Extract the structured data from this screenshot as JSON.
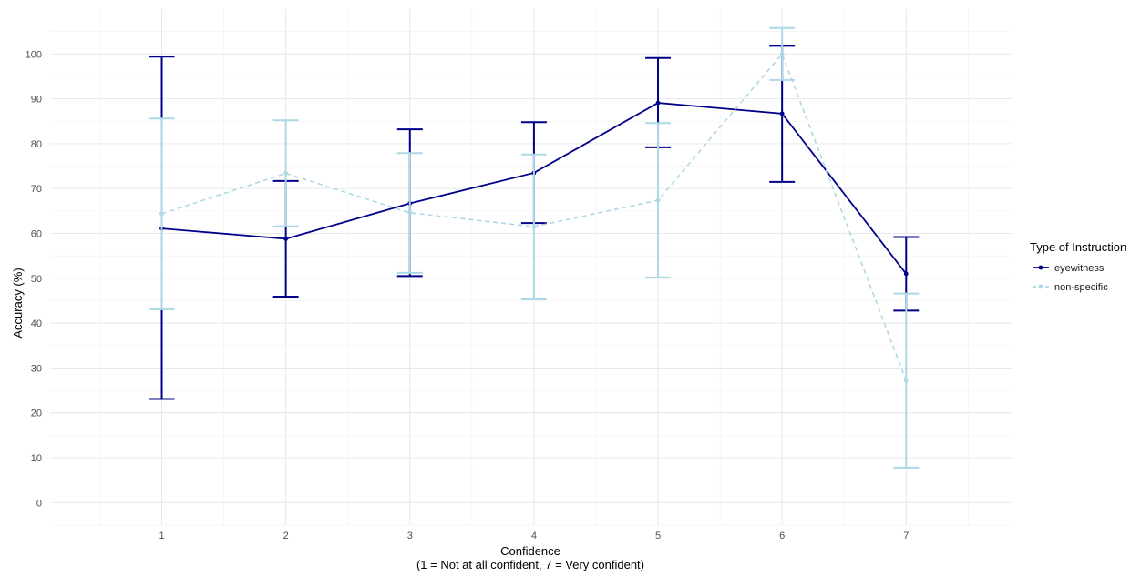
{
  "chart_data": {
    "type": "line",
    "title": "",
    "xlabel_line1": "Confidence",
    "xlabel_line2": "(1 = Not at all confident, 7 = Very confident)",
    "ylabel": "Accuracy (%)",
    "x": [
      1,
      2,
      3,
      4,
      5,
      6,
      7
    ],
    "xlim": [
      0.1,
      7.85
    ],
    "ylim": [
      -5,
      110
    ],
    "yticks": [
      0,
      10,
      20,
      30,
      40,
      50,
      60,
      70,
      80,
      90,
      100
    ],
    "grid": true,
    "legend": {
      "title": "Type of Instruction",
      "position": "right"
    },
    "series": [
      {
        "name": "eyewitness",
        "color": "#00008B",
        "dashed": false,
        "values": [
          61.1,
          58.8,
          66.7,
          73.5,
          89.1,
          86.7,
          51.0
        ],
        "error_low": [
          23.1,
          45.9,
          50.5,
          62.3,
          79.2,
          71.5,
          42.8
        ],
        "error_high": [
          99.4,
          71.7,
          83.2,
          84.8,
          99.1,
          101.8,
          59.2
        ]
      },
      {
        "name": "non-specific",
        "color": "#ADD8E6",
        "dashed": true,
        "values": [
          64.4,
          73.4,
          64.6,
          61.5,
          67.4,
          100.0,
          27.2
        ],
        "error_low": [
          43.1,
          61.6,
          51.2,
          45.3,
          50.2,
          94.2,
          7.8
        ],
        "error_high": [
          85.6,
          85.2,
          77.9,
          77.6,
          84.6,
          105.8,
          46.6
        ]
      }
    ]
  }
}
